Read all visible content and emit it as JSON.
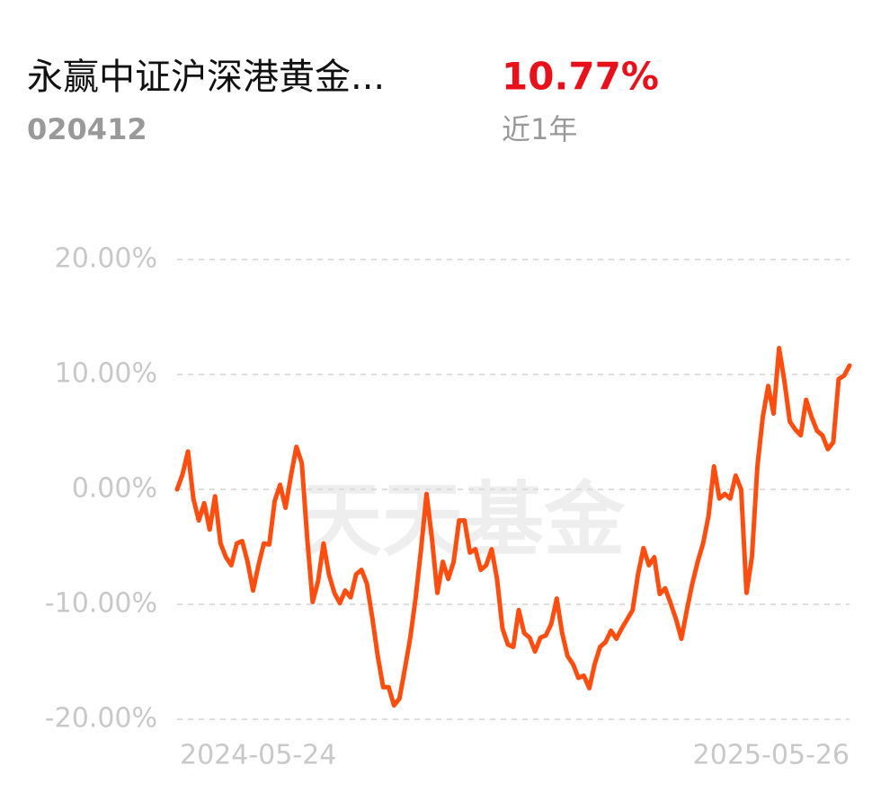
{
  "header": {
    "title": "永赢中证沪深港黄金...",
    "code": "020412",
    "return": "10.77%",
    "period": "近1年"
  },
  "watermark": "天天基金",
  "chart_data": {
    "type": "line",
    "categories": [
      "2024-05-24",
      null,
      null,
      null,
      null,
      null,
      null,
      null,
      null,
      null,
      null,
      null,
      null,
      null,
      null,
      null,
      null,
      null,
      null,
      null,
      null,
      null,
      null,
      null,
      null,
      null,
      null,
      null,
      null,
      null,
      null,
      null,
      null,
      null,
      null,
      null,
      null,
      null,
      null,
      null,
      null,
      null,
      null,
      null,
      null,
      null,
      null,
      null,
      null,
      null,
      null,
      null,
      null,
      null,
      null,
      null,
      null,
      null,
      null,
      null,
      null,
      null,
      null,
      null,
      null,
      null,
      null,
      null,
      null,
      null,
      null,
      null,
      null,
      null,
      null,
      null,
      null,
      null,
      null,
      null,
      null,
      null,
      null,
      null,
      null,
      null,
      null,
      null,
      null,
      null,
      null,
      null,
      null,
      null,
      null,
      null,
      null,
      null,
      null,
      null,
      null,
      null,
      null,
      null,
      null,
      null,
      null,
      null,
      null,
      null,
      null,
      null,
      null,
      null,
      null,
      null,
      null,
      null,
      null,
      null,
      null,
      null,
      null,
      null,
      "2025-05-26"
    ],
    "series": [
      {
        "name": "永赢中证沪深港黄金",
        "color": "#ff4d0f",
        "values": [
          0,
          1.3,
          3.3,
          -0.8,
          -2.7,
          -1.2,
          -3.5,
          -0.6,
          -4.7,
          -5.9,
          -6.6,
          -4.7,
          -4.5,
          -6.3,
          -8.8,
          -6.6,
          -4.7,
          -4.8,
          -1.0,
          0.4,
          -1.6,
          1.2,
          3.7,
          2.3,
          -4.3,
          -9.8,
          -8.0,
          -4.7,
          -7.4,
          -9.0,
          -9.9,
          -8.8,
          -9.4,
          -7.4,
          -7.0,
          -8.2,
          -11.2,
          -14.5,
          -17.2,
          -17.2,
          -18.8,
          -18.2,
          -15.6,
          -12.9,
          -9.4,
          -5.1,
          -0.4,
          -4.3,
          -9.0,
          -6.3,
          -7.8,
          -6.3,
          -2.7,
          -2.7,
          -5.5,
          -5.2,
          -7.0,
          -6.6,
          -5.2,
          -7.8,
          -12.1,
          -13.5,
          -13.7,
          -10.5,
          -12.5,
          -12.9,
          -14.1,
          -12.9,
          -12.7,
          -11.7,
          -9.5,
          -12.5,
          -14.5,
          -15.2,
          -16.4,
          -16.2,
          -17.3,
          -15.2,
          -13.7,
          -13.3,
          -12.3,
          -13.0,
          -12.1,
          -11.3,
          -10.5,
          -7.4,
          -5.1,
          -6.6,
          -5.9,
          -9.1,
          -8.6,
          -9.9,
          -11.3,
          -13.0,
          -10.5,
          -8.2,
          -6.3,
          -4.7,
          -2.3,
          2.0,
          -0.8,
          -0.4,
          -0.8,
          1.2,
          0.0,
          -9.0,
          -5.9,
          2.0,
          6.3,
          9.0,
          6.6,
          12.3,
          9.4,
          5.9,
          5.2,
          4.7,
          7.8,
          6.3,
          5.1,
          4.7,
          3.5,
          4.1,
          9.6,
          9.9,
          10.77
        ]
      }
    ],
    "ylim": [
      -20,
      20
    ],
    "yticks": [
      {
        "value": 20,
        "label": "20.00%"
      },
      {
        "value": 10,
        "label": "10.00%"
      },
      {
        "value": 0,
        "label": "0.00%"
      },
      {
        "value": -10,
        "label": "-10.00%"
      },
      {
        "value": -20,
        "label": "-20.00%"
      }
    ],
    "grid": true
  }
}
